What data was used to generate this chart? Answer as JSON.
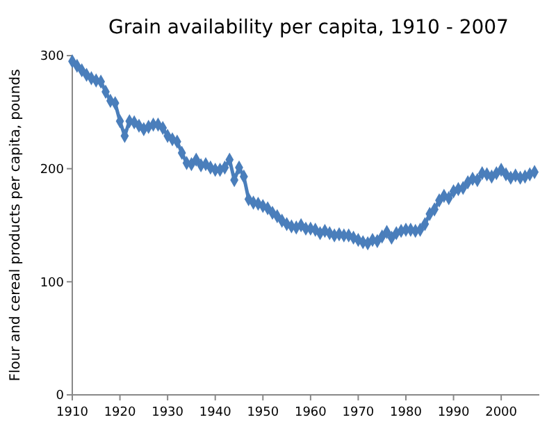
{
  "chart_data": {
    "type": "line",
    "title": "Grain availability per capita, 1910 - 2007",
    "ylabel": "Flour and cereal products per capita, pounds",
    "x": [
      1910,
      1911,
      1912,
      1913,
      1914,
      1915,
      1916,
      1917,
      1918,
      1919,
      1920,
      1921,
      1922,
      1923,
      1924,
      1925,
      1926,
      1927,
      1928,
      1929,
      1930,
      1931,
      1932,
      1933,
      1934,
      1935,
      1936,
      1937,
      1938,
      1939,
      1940,
      1941,
      1942,
      1943,
      1944,
      1945,
      1946,
      1947,
      1948,
      1949,
      1950,
      1951,
      1952,
      1953,
      1954,
      1955,
      1956,
      1957,
      1958,
      1959,
      1960,
      1961,
      1962,
      1963,
      1964,
      1965,
      1966,
      1967,
      1968,
      1969,
      1970,
      1971,
      1972,
      1973,
      1974,
      1975,
      1976,
      1977,
      1978,
      1979,
      1980,
      1981,
      1982,
      1983,
      1984,
      1985,
      1986,
      1987,
      1988,
      1989,
      1990,
      1991,
      1992,
      1993,
      1994,
      1995,
      1996,
      1997,
      1998,
      1999,
      2000,
      2001,
      2002,
      2003,
      2004,
      2005,
      2006,
      2007
    ],
    "series": [
      {
        "color": "#4a7ebb",
        "values": [
          295,
          291,
          287,
          283,
          280,
          278,
          277,
          268,
          260,
          258,
          242,
          229,
          242,
          241,
          238,
          235,
          237,
          239,
          239,
          236,
          229,
          226,
          224,
          214,
          205,
          204,
          208,
          203,
          204,
          201,
          199,
          199,
          201,
          208,
          190,
          201,
          193,
          173,
          170,
          169,
          167,
          165,
          161,
          158,
          154,
          151,
          149,
          148,
          150,
          147,
          147,
          146,
          143,
          145,
          143,
          141,
          142,
          141,
          141,
          139,
          137,
          135,
          134,
          137,
          136,
          140,
          144,
          139,
          143,
          145,
          146,
          146,
          145,
          146,
          151,
          160,
          164,
          172,
          176,
          174,
          180,
          182,
          183,
          188,
          191,
          190,
          196,
          195,
          193,
          196,
          199,
          195,
          192,
          194,
          192,
          193,
          195,
          197
        ]
      }
    ],
    "xlim": [
      1910,
      2008
    ],
    "xticks": [
      1910,
      1920,
      1930,
      1940,
      1950,
      1960,
      1970,
      1980,
      1990,
      2000
    ],
    "ylim": [
      0,
      300
    ],
    "yticks": [
      0,
      100,
      200,
      300
    ],
    "grid": false,
    "marker": "diamond",
    "line_style": "solid"
  }
}
